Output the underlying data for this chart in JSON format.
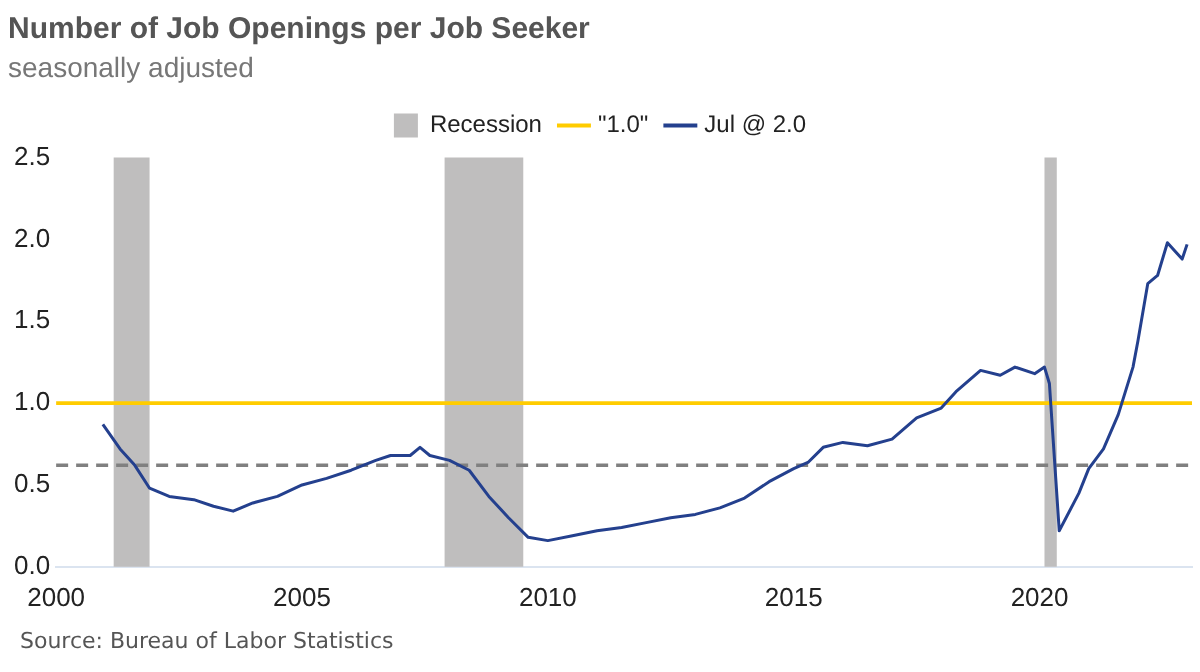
{
  "chart_data": {
    "type": "line",
    "title": "Number of Job Openings per Job Seeker",
    "subtitle": "seasonally adjusted",
    "annotations": [
      "Source: Bureau of Labor Statistics"
    ],
    "xlim": [
      2000,
      2023.1
    ],
    "xticks": [
      2000,
      2005,
      2010,
      2015,
      2020
    ],
    "ylim": [
      0,
      2.5
    ],
    "yticks": [
      {
        "value": 0,
        "label": "0.0"
      },
      0.5,
      {
        "value": 1,
        "label": "1.0"
      },
      1.5,
      {
        "value": 2,
        "label": "2.0"
      },
      2.5
    ],
    "grid": false,
    "legend": "top",
    "marker": "none",
    "line_style": "solid",
    "bands": [
      {
        "axis": "x",
        "from": 2001.17,
        "to": 2001.9,
        "label": "Recession",
        "color": "#bfbebe"
      },
      {
        "axis": "x",
        "from": 2007.9,
        "to": 2009.5,
        "color": "#bfbebe"
      },
      {
        "axis": "x",
        "from": 2020.1,
        "to": 2020.35,
        "color": "#bfbebe"
      }
    ],
    "ref_lines": [
      {
        "axis": "y",
        "value": 1.0,
        "label": "\"1.0\"",
        "color": "#ffcc00",
        "line_style": "solid"
      },
      {
        "axis": "y",
        "value": 0.62,
        "color": "#808080",
        "line_style": "dashed"
      }
    ],
    "series": [
      {
        "name": "Jul @ 2.0",
        "color": "#24408e",
        "x": [
          2000.95,
          2001.3,
          2001.6,
          2001.9,
          2002.3,
          2002.8,
          2003.2,
          2003.6,
          2004.0,
          2004.5,
          2005.0,
          2005.5,
          2006.0,
          2006.5,
          2006.8,
          2007.2,
          2007.4,
          2007.6,
          2008.0,
          2008.4,
          2008.8,
          2009.2,
          2009.6,
          2010.0,
          2010.5,
          2011.0,
          2011.5,
          2012.0,
          2012.5,
          2013.0,
          2013.5,
          2014.0,
          2014.5,
          2015.0,
          2015.3,
          2015.6,
          2016.0,
          2016.5,
          2017.0,
          2017.5,
          2018.0,
          2018.3,
          2018.8,
          2019.2,
          2019.5,
          2019.9,
          2020.1,
          2020.2,
          2020.4,
          2020.8,
          2021.0,
          2021.3,
          2021.6,
          2021.9,
          2022.0,
          2022.2,
          2022.4,
          2022.6,
          2022.9,
          2023.0
        ],
        "values": [
          0.87,
          0.72,
          0.62,
          0.48,
          0.43,
          0.41,
          0.37,
          0.34,
          0.39,
          0.43,
          0.5,
          0.54,
          0.59,
          0.65,
          0.68,
          0.68,
          0.73,
          0.68,
          0.65,
          0.59,
          0.43,
          0.3,
          0.18,
          0.16,
          0.19,
          0.22,
          0.24,
          0.27,
          0.3,
          0.32,
          0.36,
          0.42,
          0.52,
          0.6,
          0.64,
          0.73,
          0.76,
          0.74,
          0.78,
          0.91,
          0.97,
          1.07,
          1.2,
          1.17,
          1.22,
          1.18,
          1.22,
          1.12,
          0.22,
          0.45,
          0.6,
          0.72,
          0.93,
          1.22,
          1.38,
          1.73,
          1.78,
          1.98,
          1.88,
          1.97
        ]
      }
    ]
  }
}
